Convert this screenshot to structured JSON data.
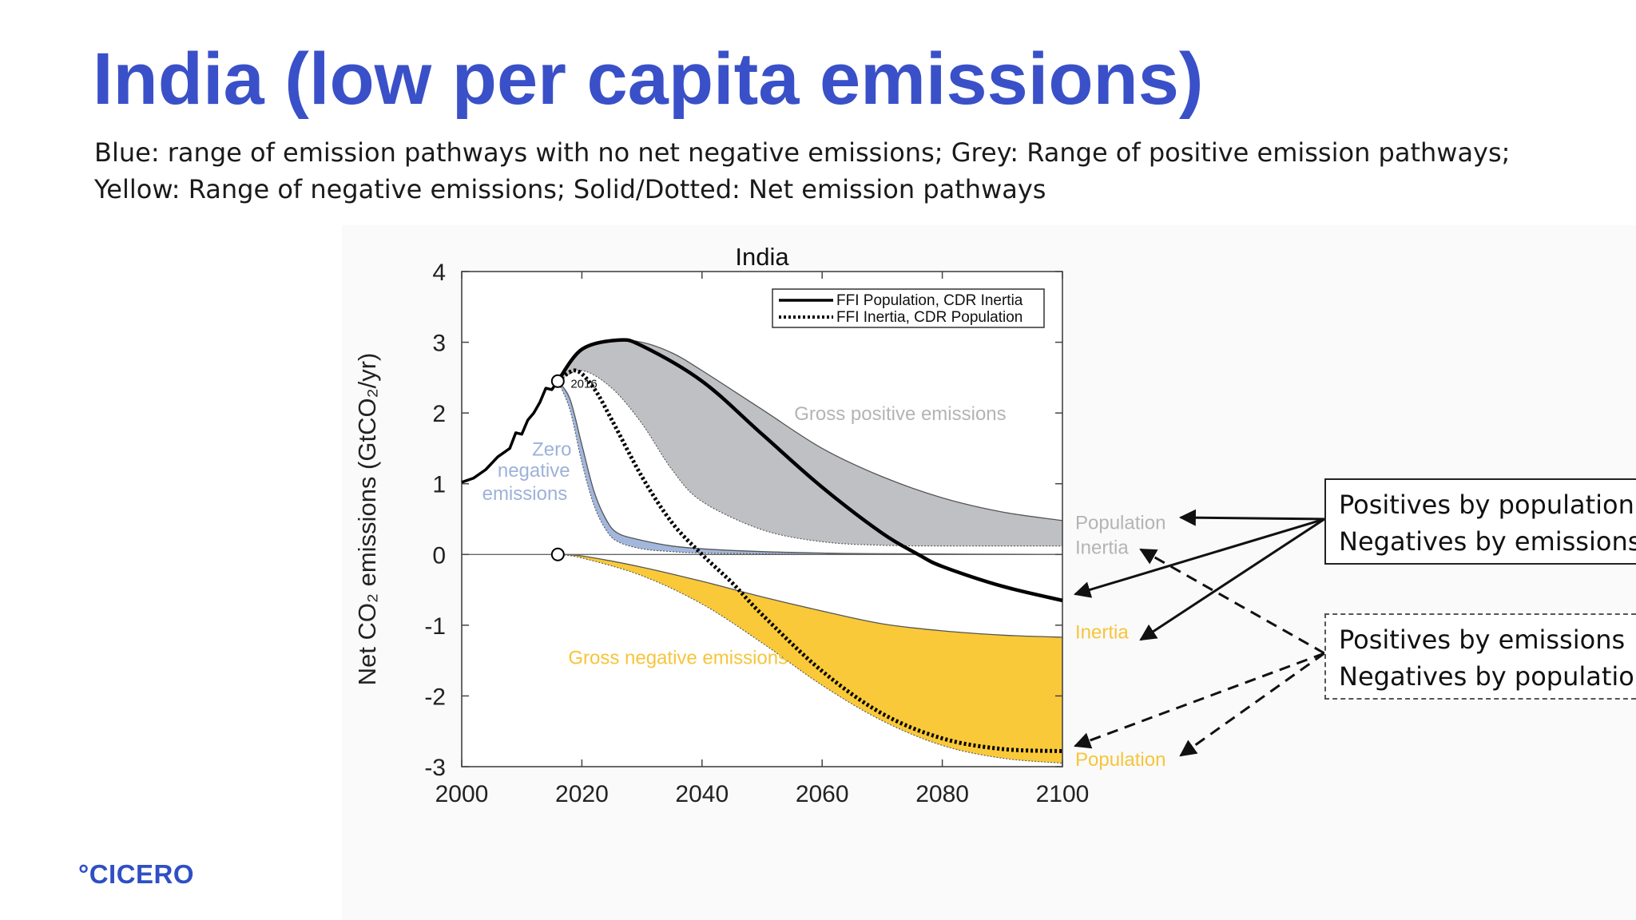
{
  "slide": {
    "title": "India (low per capita emissions)",
    "subtitle_line1": "Blue: range of emission pathways with no net negative emissions; Grey: Range of positive emission pathways;",
    "subtitle_line2": "Yellow: Range of negative emissions; Solid/Dotted: Net emission pathways",
    "logo": "°CICERO"
  },
  "callouts": {
    "solid": {
      "line1": "Positives by population",
      "line2": "Negatives by emissions"
    },
    "dashed": {
      "line1": "Positives by emissions",
      "line2": "Negatives by population"
    }
  },
  "chart_data": {
    "type": "area",
    "title": "India",
    "xlabel": "",
    "ylabel": "Net CO₂ emissions (GtCO₂/yr)",
    "xlim": [
      2000,
      2100
    ],
    "ylim": [
      -3,
      4
    ],
    "xticks": [
      2000,
      2020,
      2040,
      2060,
      2080,
      2100
    ],
    "yticks": [
      4,
      3,
      2,
      1,
      0,
      -1,
      -2,
      -3
    ],
    "legend_position": "top-right",
    "colors": {
      "grey": "#bfc0c4",
      "blue": "#a3b7dc",
      "yellow": "#f9c93a",
      "label_grey": "#b4b4b4",
      "label_yellow": "#f6c53a",
      "label_blue": "#9db2d8"
    },
    "annotations": [
      {
        "text": "2016",
        "x": 2016,
        "y": 2.45
      },
      {
        "text": "Gross positive emissions",
        "x": 2073,
        "y": 1.9,
        "color": "label_grey"
      },
      {
        "text": "Gross negative emissions",
        "x": 2036,
        "y": -1.55,
        "color": "label_yellow"
      },
      {
        "text": "Zero",
        "x": 2015,
        "y": 1.4,
        "color": "label_blue"
      },
      {
        "text": "negative",
        "x": 2012,
        "y": 1.1,
        "color": "label_blue"
      },
      {
        "text": "emissions",
        "x": 2010.5,
        "y": 0.77,
        "color": "label_blue"
      }
    ],
    "right_labels": [
      {
        "text": "Population",
        "y": 0.45,
        "color": "label_grey"
      },
      {
        "text": "Inertia",
        "y": 0.1,
        "color": "label_grey"
      },
      {
        "text": "Inertia",
        "y": -1.1,
        "color": "label_yellow"
      },
      {
        "text": "Population",
        "y": -2.9,
        "color": "label_yellow"
      }
    ],
    "historical": {
      "x": [
        2000,
        2002,
        2004,
        2006,
        2008,
        2009,
        2010,
        2011,
        2012,
        2013,
        2014,
        2015,
        2016
      ],
      "y": [
        1.02,
        1.08,
        1.2,
        1.38,
        1.5,
        1.72,
        1.7,
        1.9,
        2.0,
        2.15,
        2.35,
        2.33,
        2.45
      ]
    },
    "series": [
      {
        "name": "FFI Population, CDR Inertia",
        "style": "solid",
        "x": [
          2016,
          2020,
          2026,
          2030,
          2040,
          2050,
          2060,
          2070,
          2076,
          2080,
          2090,
          2100
        ],
        "y": [
          2.45,
          2.9,
          3.03,
          2.95,
          2.45,
          1.7,
          0.95,
          0.3,
          0.0,
          -0.17,
          -0.45,
          -0.65
        ]
      },
      {
        "name": "FFI Inertia, CDR Population",
        "style": "dotted",
        "x": [
          2016,
          2019,
          2022,
          2025,
          2030,
          2035,
          2040,
          2045,
          2050,
          2060,
          2070,
          2080,
          2090,
          2100
        ],
        "y": [
          2.45,
          2.6,
          2.35,
          1.9,
          1.1,
          0.45,
          0.0,
          -0.4,
          -0.85,
          -1.65,
          -2.25,
          -2.6,
          -2.75,
          -2.78
        ]
      }
    ],
    "bands": [
      {
        "name": "Gross positive emissions",
        "color": "grey",
        "x": [
          2016,
          2020,
          2025,
          2030,
          2035,
          2040,
          2050,
          2060,
          2070,
          2080,
          2090,
          2100
        ],
        "upper": [
          2.45,
          2.9,
          3.03,
          3.0,
          2.85,
          2.6,
          2.05,
          1.5,
          1.1,
          0.8,
          0.6,
          0.48
        ],
        "lower": [
          2.45,
          2.6,
          2.35,
          1.85,
          1.2,
          0.75,
          0.35,
          0.18,
          0.13,
          0.12,
          0.12,
          0.12
        ]
      },
      {
        "name": "Zero negative emissions",
        "color": "blue",
        "x": [
          2016,
          2018,
          2020,
          2022,
          2024,
          2026,
          2030,
          2035,
          2040,
          2050,
          2060,
          2070,
          2100
        ],
        "upper": [
          2.45,
          2.2,
          1.55,
          0.9,
          0.5,
          0.3,
          0.2,
          0.12,
          0.08,
          0.04,
          0.02,
          0.01,
          0.0
        ],
        "lower": [
          2.45,
          2.05,
          1.3,
          0.7,
          0.35,
          0.18,
          0.08,
          0.04,
          0.02,
          0.01,
          0.0,
          0.0,
          0.0
        ]
      },
      {
        "name": "Gross negative emissions",
        "color": "yellow",
        "x": [
          2016,
          2020,
          2030,
          2040,
          2050,
          2060,
          2070,
          2080,
          2090,
          2100
        ],
        "upper": [
          0.0,
          -0.02,
          -0.18,
          -0.38,
          -0.6,
          -0.8,
          -0.98,
          -1.08,
          -1.14,
          -1.17
        ],
        "lower": [
          0.0,
          -0.05,
          -0.3,
          -0.7,
          -1.25,
          -1.85,
          -2.35,
          -2.7,
          -2.88,
          -2.95
        ]
      }
    ],
    "markers": [
      {
        "x": 2016,
        "y": 2.45
      },
      {
        "x": 2016,
        "y": 0.0
      }
    ]
  }
}
